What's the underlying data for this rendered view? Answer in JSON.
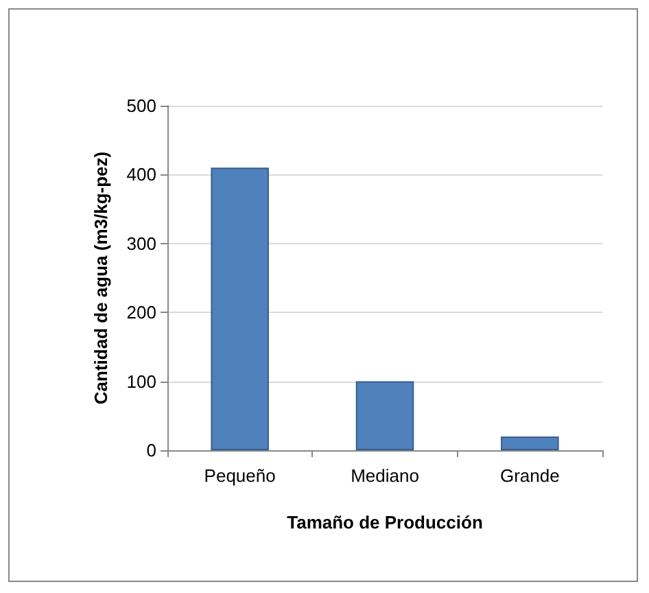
{
  "chart_data": {
    "type": "bar",
    "xlabel": "Tamaño de Producción",
    "ylabel": "Cantidad de agua (m3/kg-pez)",
    "categories": [
      "Pequeño",
      "Mediano",
      "Grande"
    ],
    "values": [
      410,
      100,
      20
    ],
    "color": "#4f81bd",
    "ylim": [
      0,
      500
    ],
    "yticks": [
      0,
      100,
      200,
      300,
      400,
      500
    ],
    "grid": "y"
  }
}
